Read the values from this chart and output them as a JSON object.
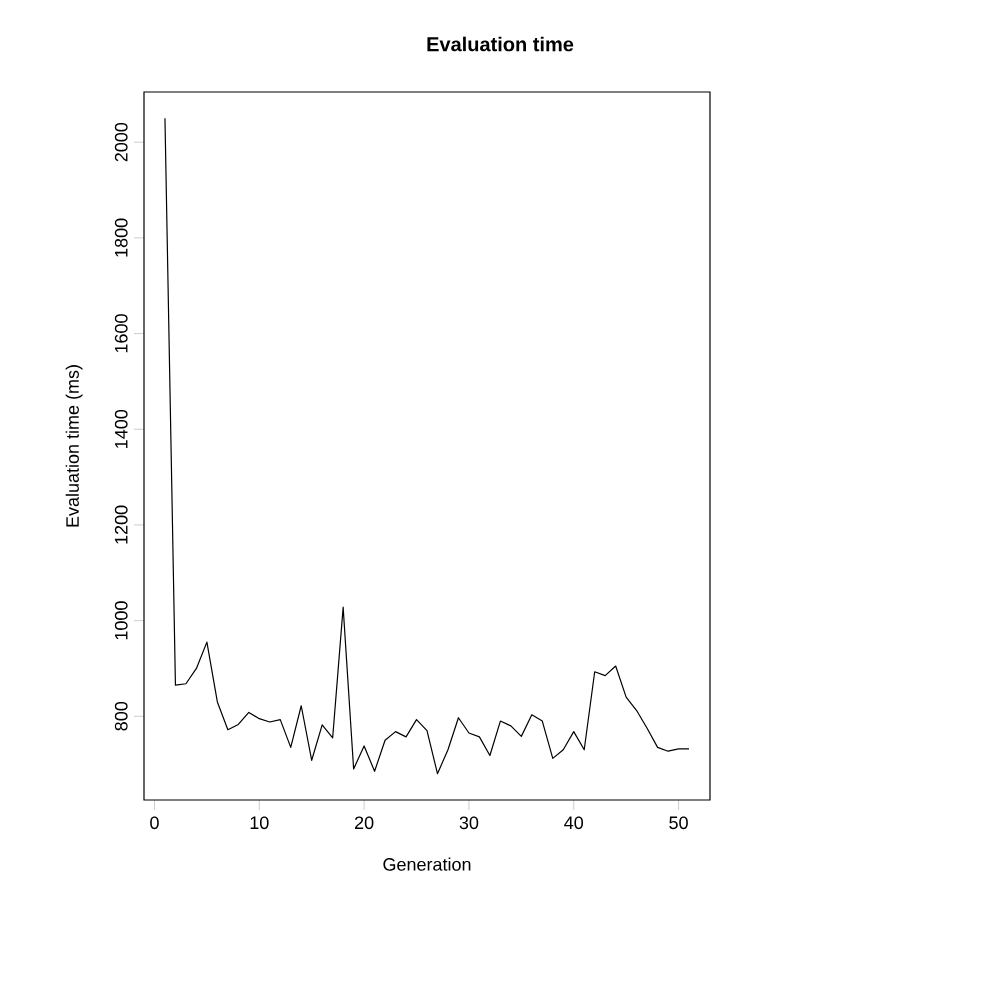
{
  "chart_data": {
    "type": "line",
    "title": "Evaluation time",
    "xlabel": "Generation",
    "ylabel": "Evaluation time (ms)",
    "x": [
      1,
      2,
      3,
      4,
      5,
      6,
      7,
      8,
      9,
      10,
      11,
      12,
      13,
      14,
      15,
      16,
      17,
      18,
      19,
      20,
      21,
      22,
      23,
      24,
      25,
      26,
      27,
      28,
      29,
      30,
      31,
      32,
      33,
      34,
      35,
      36,
      37,
      38,
      39,
      40,
      41,
      42,
      43,
      44,
      45,
      46,
      47,
      48,
      49,
      50,
      51
    ],
    "series": [
      {
        "color": "#000000",
        "values": [
          2050,
          865,
          868,
          900,
          955,
          830,
          772,
          783,
          808,
          795,
          788,
          793,
          735,
          822,
          708,
          782,
          755,
          1028,
          690,
          738,
          685,
          750,
          768,
          757,
          793,
          770,
          680,
          730,
          797,
          765,
          757,
          718,
          790,
          780,
          758,
          803,
          790,
          712,
          730,
          768,
          730,
          893,
          885,
          905,
          840,
          812,
          775,
          735,
          727,
          732,
          732
        ]
      }
    ],
    "xlim": [
      -1,
      53
    ],
    "ylim": [
      625,
      2105
    ],
    "xticks": [
      0,
      10,
      20,
      30,
      40,
      50
    ],
    "yticks": [
      800,
      1000,
      1200,
      1400,
      1600,
      1800,
      2000
    ],
    "grid": false,
    "marker": "none",
    "line_style": "solid"
  }
}
